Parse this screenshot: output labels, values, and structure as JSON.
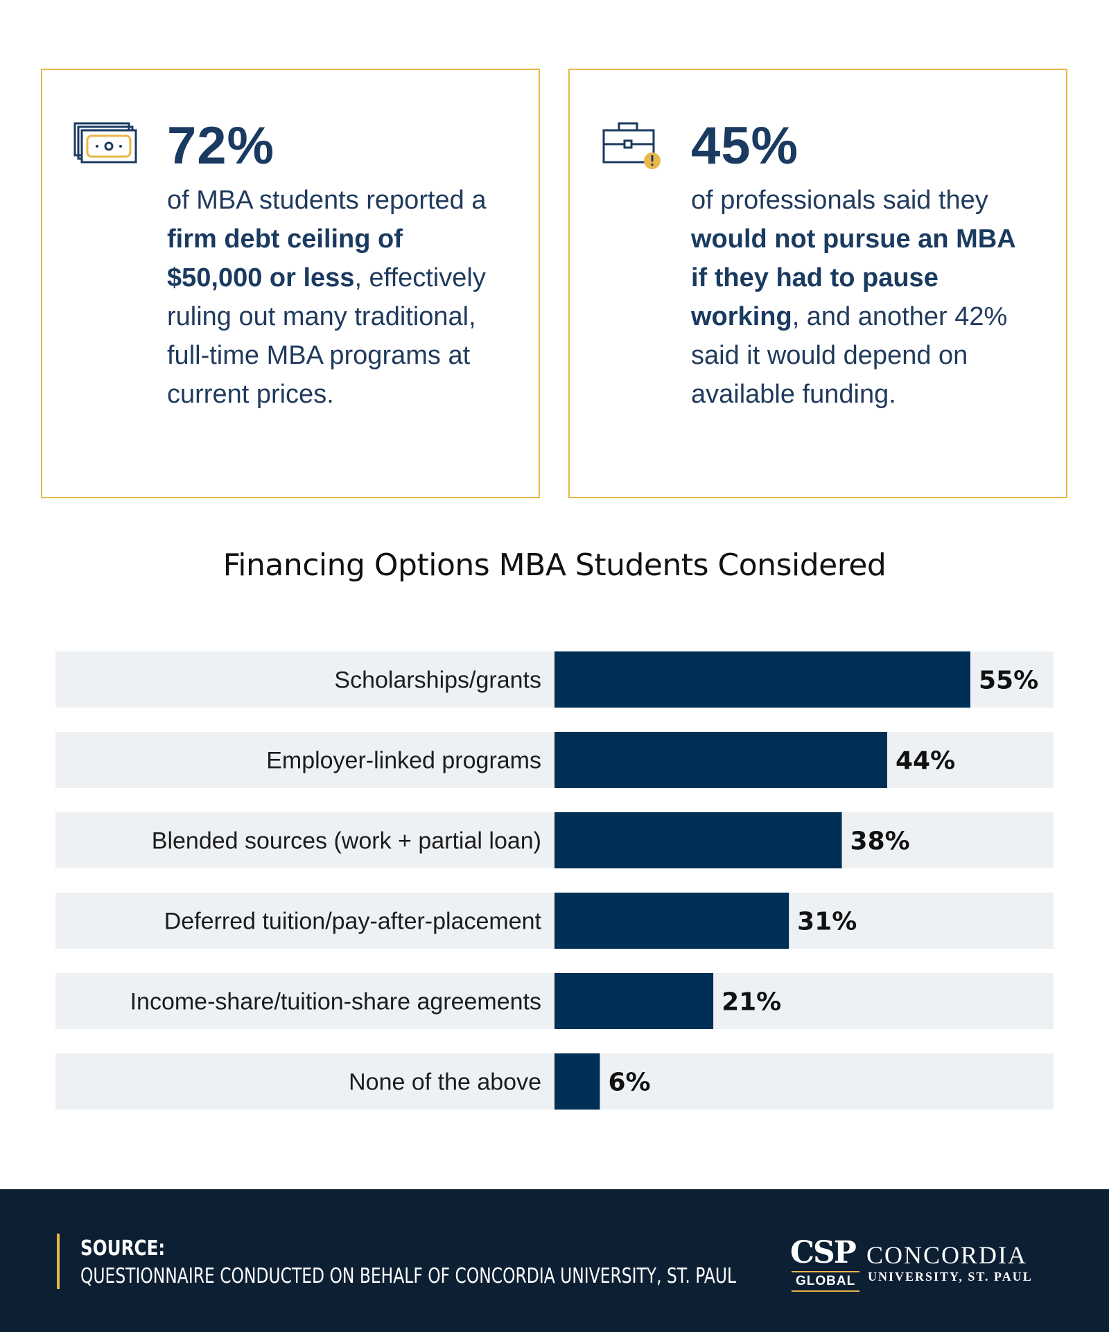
{
  "stats": [
    {
      "value": "72%",
      "text_before": "of MBA students reported a ",
      "text_bold": "firm debt ceiling of $50,000 or less",
      "text_after": ", effectively ruling out many traditional, full-time MBA programs at current prices.",
      "icon": "cash-stack-icon"
    },
    {
      "value": "45%",
      "text_before": "of professionals said they ",
      "text_bold": "would not pursue an MBA if they had to pause working",
      "text_after": ", and another 42% said it would depend on available funding.",
      "icon": "briefcase-alert-icon"
    }
  ],
  "chart_data": {
    "type": "bar",
    "orientation": "horizontal",
    "title": "Financing Options MBA Students Considered",
    "categories": [
      "Scholarships/grants",
      "Employer-linked programs",
      "Blended sources (work + partial loan)",
      "Deferred tuition/pay-after-placement",
      "Income-share/tuition-share agreements",
      "None of the above"
    ],
    "values": [
      55,
      44,
      38,
      31,
      21,
      6
    ],
    "value_labels": [
      "55%",
      "44%",
      "38%",
      "31%",
      "21%",
      "6%"
    ],
    "xlim": [
      0,
      66
    ],
    "xlabel": "",
    "ylabel": "",
    "grid": false
  },
  "footer": {
    "source_title": "SOURCE:",
    "source_text": "QUESTIONNAIRE CONDUCTED ON BEHALF OF CONCORDIA UNIVERSITY, ST. PAUL",
    "logo_mark": "CSP",
    "logo_global": "GLOBAL",
    "logo_name": "CONCORDIA",
    "logo_sub": "UNIVERSITY, ST. PAUL"
  },
  "colors": {
    "bar": "#002f55",
    "row_bg": "#eef1f4",
    "accent": "#e8b84a",
    "footer_bg": "#0c1f33",
    "heading": "#1a3a60"
  }
}
